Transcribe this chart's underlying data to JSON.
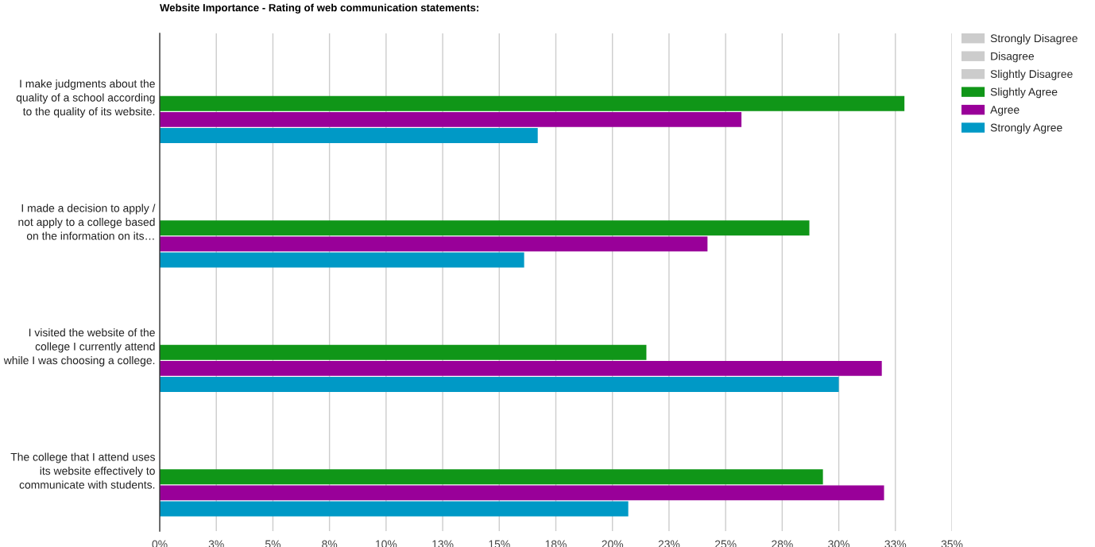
{
  "chart_data": {
    "type": "bar",
    "orientation": "horizontal",
    "title": "Website Importance - Rating of web communication statements:",
    "categories": [
      "I make judgments about the\nquality of a school according\nto the quality of its website.",
      "I made a decision to apply /\nnot apply to a college based\non the information on its…",
      "I visited the website of the\ncollege I currently attend\nwhile I was choosing a college.",
      "The college that I attend uses\nits website effectively to\ncommunicate with students."
    ],
    "series": [
      {
        "name": "Strongly Disagree",
        "color": "#cccccc",
        "values": [
          0,
          0,
          0,
          0
        ]
      },
      {
        "name": "Disagree",
        "color": "#cccccc",
        "values": [
          0,
          0,
          0,
          0
        ]
      },
      {
        "name": "Slightly Disagree",
        "color": "#cccccc",
        "values": [
          0,
          0,
          0,
          0
        ]
      },
      {
        "name": "Slightly Agree",
        "color": "#109618",
        "values": [
          32.9,
          28.7,
          21.5,
          29.3
        ]
      },
      {
        "name": "Agree",
        "color": "#990099",
        "values": [
          25.7,
          24.2,
          31.9,
          32.0
        ]
      },
      {
        "name": "Strongly Agree",
        "color": "#0099c6",
        "values": [
          16.7,
          16.1,
          30.0,
          20.7
        ]
      }
    ],
    "xlim": [
      0,
      35
    ],
    "xticks": [
      {
        "value": 0,
        "label": "0%"
      },
      {
        "value": 2.5,
        "label": "3%"
      },
      {
        "value": 5,
        "label": "5%"
      },
      {
        "value": 7.5,
        "label": "8%"
      },
      {
        "value": 10,
        "label": "10%"
      },
      {
        "value": 12.5,
        "label": "13%"
      },
      {
        "value": 15,
        "label": "15%"
      },
      {
        "value": 17.5,
        "label": "18%"
      },
      {
        "value": 20,
        "label": "20%"
      },
      {
        "value": 22.5,
        "label": "23%"
      },
      {
        "value": 25,
        "label": "25%"
      },
      {
        "value": 27.5,
        "label": "28%"
      },
      {
        "value": 30,
        "label": "30%"
      },
      {
        "value": 32.5,
        "label": "33%"
      },
      {
        "value": 35,
        "label": "35%"
      }
    ],
    "grid": "x",
    "legend": "top right"
  }
}
